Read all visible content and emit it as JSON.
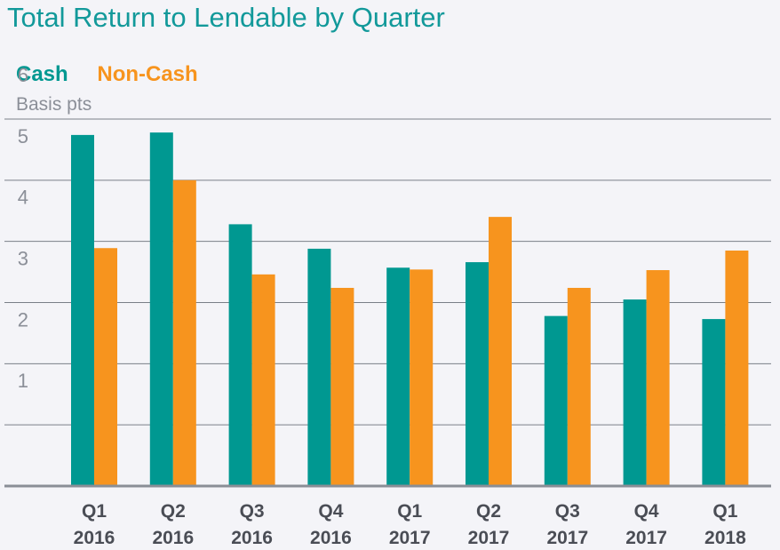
{
  "chart_data": {
    "type": "bar",
    "title": "Total Return to Lendable by Quarter",
    "ylabel": "Basis pts",
    "ylim": [
      0,
      6
    ],
    "yticks": [
      1,
      2,
      3,
      4,
      5,
      6
    ],
    "grid": true,
    "legend_position": "top-left",
    "categories": [
      [
        "Q1",
        "2016"
      ],
      [
        "Q2",
        "2016"
      ],
      [
        "Q3",
        "2016"
      ],
      [
        "Q4",
        "2016"
      ],
      [
        "Q1",
        "2017"
      ],
      [
        "Q2",
        "2017"
      ],
      [
        "Q3",
        "2017"
      ],
      [
        "Q4",
        "2017"
      ],
      [
        "Q1",
        "2018"
      ]
    ],
    "series": [
      {
        "name": "Cash",
        "color": "#009891",
        "values": [
          5.74,
          5.78,
          4.28,
          3.88,
          3.57,
          3.66,
          2.78,
          3.05,
          2.73
        ]
      },
      {
        "name": "Non-Cash",
        "color": "#f7941e",
        "values": [
          3.89,
          5.0,
          3.46,
          3.24,
          3.54,
          4.4,
          3.24,
          3.53,
          3.85
        ]
      }
    ]
  }
}
